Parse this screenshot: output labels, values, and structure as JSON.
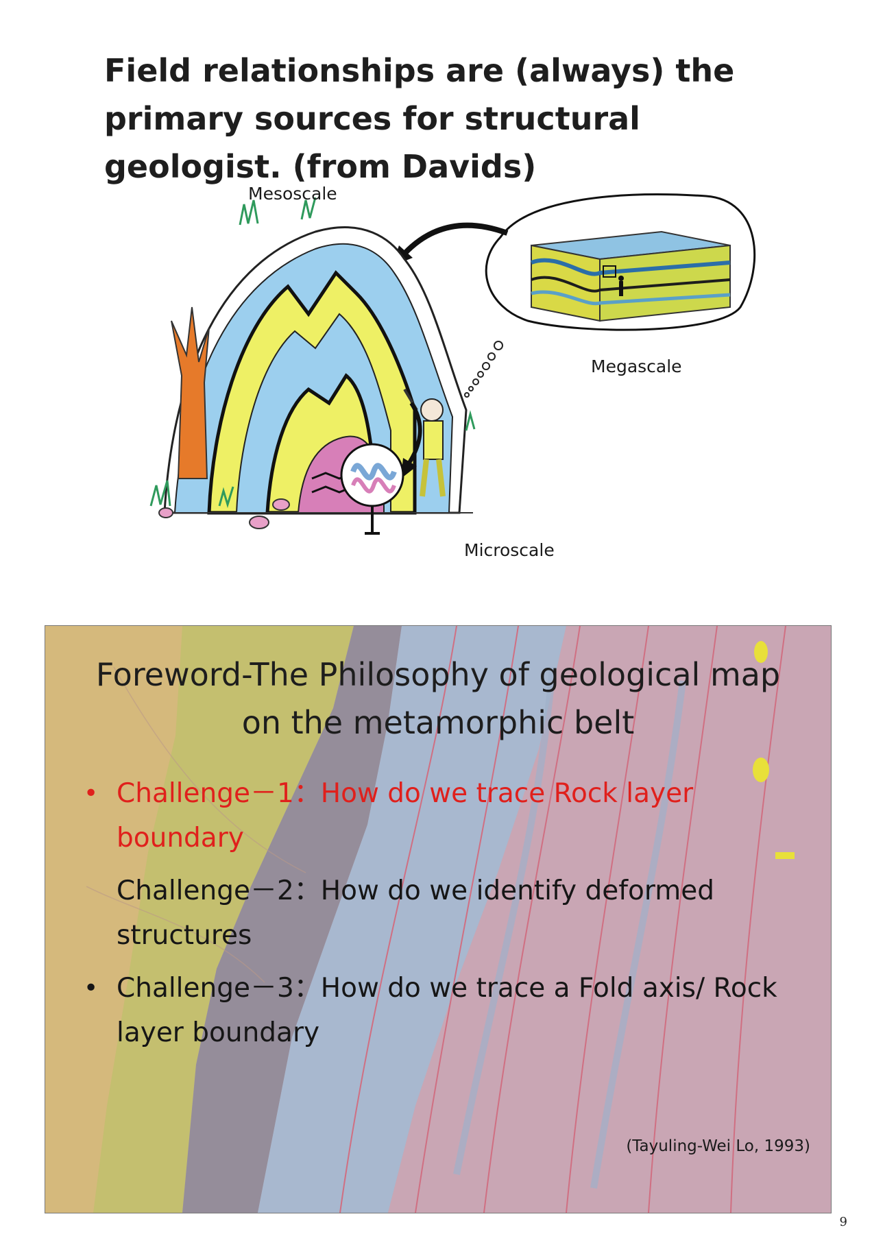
{
  "heading": "Field relationships are (always) the primary sources for structural geologist.  (from Davids)",
  "figure": {
    "labels": {
      "mesoscale": "Mesoscale",
      "megascale": "Megascale",
      "microscale": "Microscale"
    }
  },
  "slide": {
    "title": "Foreword-The Philosophy of geological map on the metamorphic belt",
    "bullets": [
      {
        "marker": "•",
        "text": "Challenge－1：How do we trace Rock layer boundary",
        "highlight": true
      },
      {
        "marker": "",
        "text": "Challenge－2：How do we identify deformed structures",
        "highlight": false
      },
      {
        "marker": "•",
        "text": "Challenge－3：How do we trace a Fold axis/ Rock layer boundary",
        "highlight": false
      }
    ],
    "credit": "(Tayuling-Wei Lo, 1993)",
    "colors": {
      "highlight": "#e0201c"
    }
  },
  "page_number": "9"
}
